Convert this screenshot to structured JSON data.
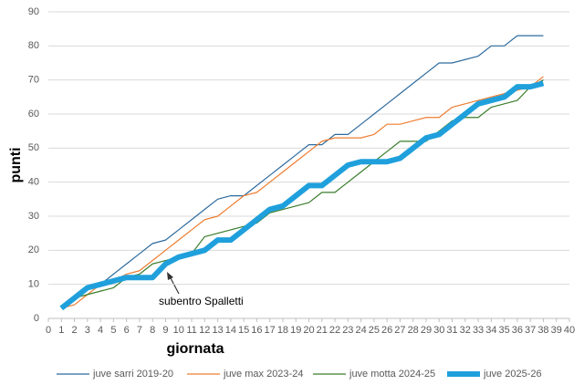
{
  "chart_data": {
    "type": "line",
    "x_label": "giornata",
    "y_label": "punti",
    "annotation": "subentro Spalletti",
    "x": [
      1,
      2,
      3,
      4,
      5,
      6,
      7,
      8,
      9,
      10,
      11,
      12,
      13,
      14,
      15,
      16,
      17,
      18,
      19,
      20,
      21,
      22,
      23,
      24,
      25,
      26,
      27,
      28,
      29,
      30,
      31,
      32,
      33,
      34,
      35,
      36,
      37,
      38
    ],
    "xlim": [
      0,
      40
    ],
    "xticks": [
      0,
      1,
      2,
      3,
      4,
      5,
      6,
      7,
      8,
      9,
      10,
      11,
      12,
      13,
      14,
      15,
      16,
      17,
      18,
      19,
      20,
      21,
      22,
      23,
      24,
      25,
      26,
      27,
      28,
      29,
      30,
      31,
      32,
      33,
      34,
      35,
      36,
      37,
      38,
      39,
      40
    ],
    "ylim": [
      0,
      90
    ],
    "yticks": [
      0,
      10,
      20,
      30,
      40,
      50,
      60,
      70,
      80,
      90
    ],
    "grid": true,
    "series": [
      {
        "name": "juve sarri 2019-20",
        "color": "#2e6b9e",
        "width": 1.2,
        "values": [
          3,
          6,
          9,
          10,
          13,
          16,
          19,
          22,
          23,
          26,
          29,
          32,
          35,
          36,
          36,
          39,
          42,
          45,
          48,
          51,
          51,
          54,
          54,
          57,
          60,
          63,
          66,
          69,
          72,
          75,
          75,
          76,
          77,
          80,
          80,
          83,
          83,
          83
        ]
      },
      {
        "name": "juve max 2023-24",
        "color": "#ed7d31",
        "width": 1.2,
        "values": [
          3,
          4,
          7,
          10,
          11,
          13,
          14,
          17,
          20,
          23,
          26,
          29,
          30,
          33,
          36,
          37,
          40,
          43,
          46,
          49,
          52,
          53,
          53,
          53,
          54,
          57,
          57,
          58,
          59,
          59,
          62,
          63,
          64,
          65,
          66,
          67,
          68,
          71
        ]
      },
      {
        "name": "juve motta 2024-25",
        "color": "#3a7d2c",
        "width": 1.2,
        "values": [
          3,
          6,
          7,
          8,
          9,
          12,
          13,
          16,
          17,
          18,
          19,
          24,
          25,
          26,
          27,
          28,
          31,
          32,
          33,
          34,
          37,
          37,
          40,
          43,
          46,
          49,
          52,
          52,
          52,
          55,
          58,
          59,
          59,
          62,
          63,
          64,
          68,
          70
        ]
      },
      {
        "name": "juve 2025-26",
        "color": "#1fa0dc",
        "width": 6,
        "values": [
          3,
          6,
          9,
          10,
          11,
          12,
          12,
          12,
          16,
          18,
          19,
          20,
          23,
          23,
          26,
          29,
          32,
          33,
          36,
          39,
          39,
          42,
          45,
          46,
          46,
          46,
          47,
          50,
          53,
          54,
          57,
          60,
          63,
          64,
          65,
          68,
          68,
          69
        ]
      }
    ]
  }
}
